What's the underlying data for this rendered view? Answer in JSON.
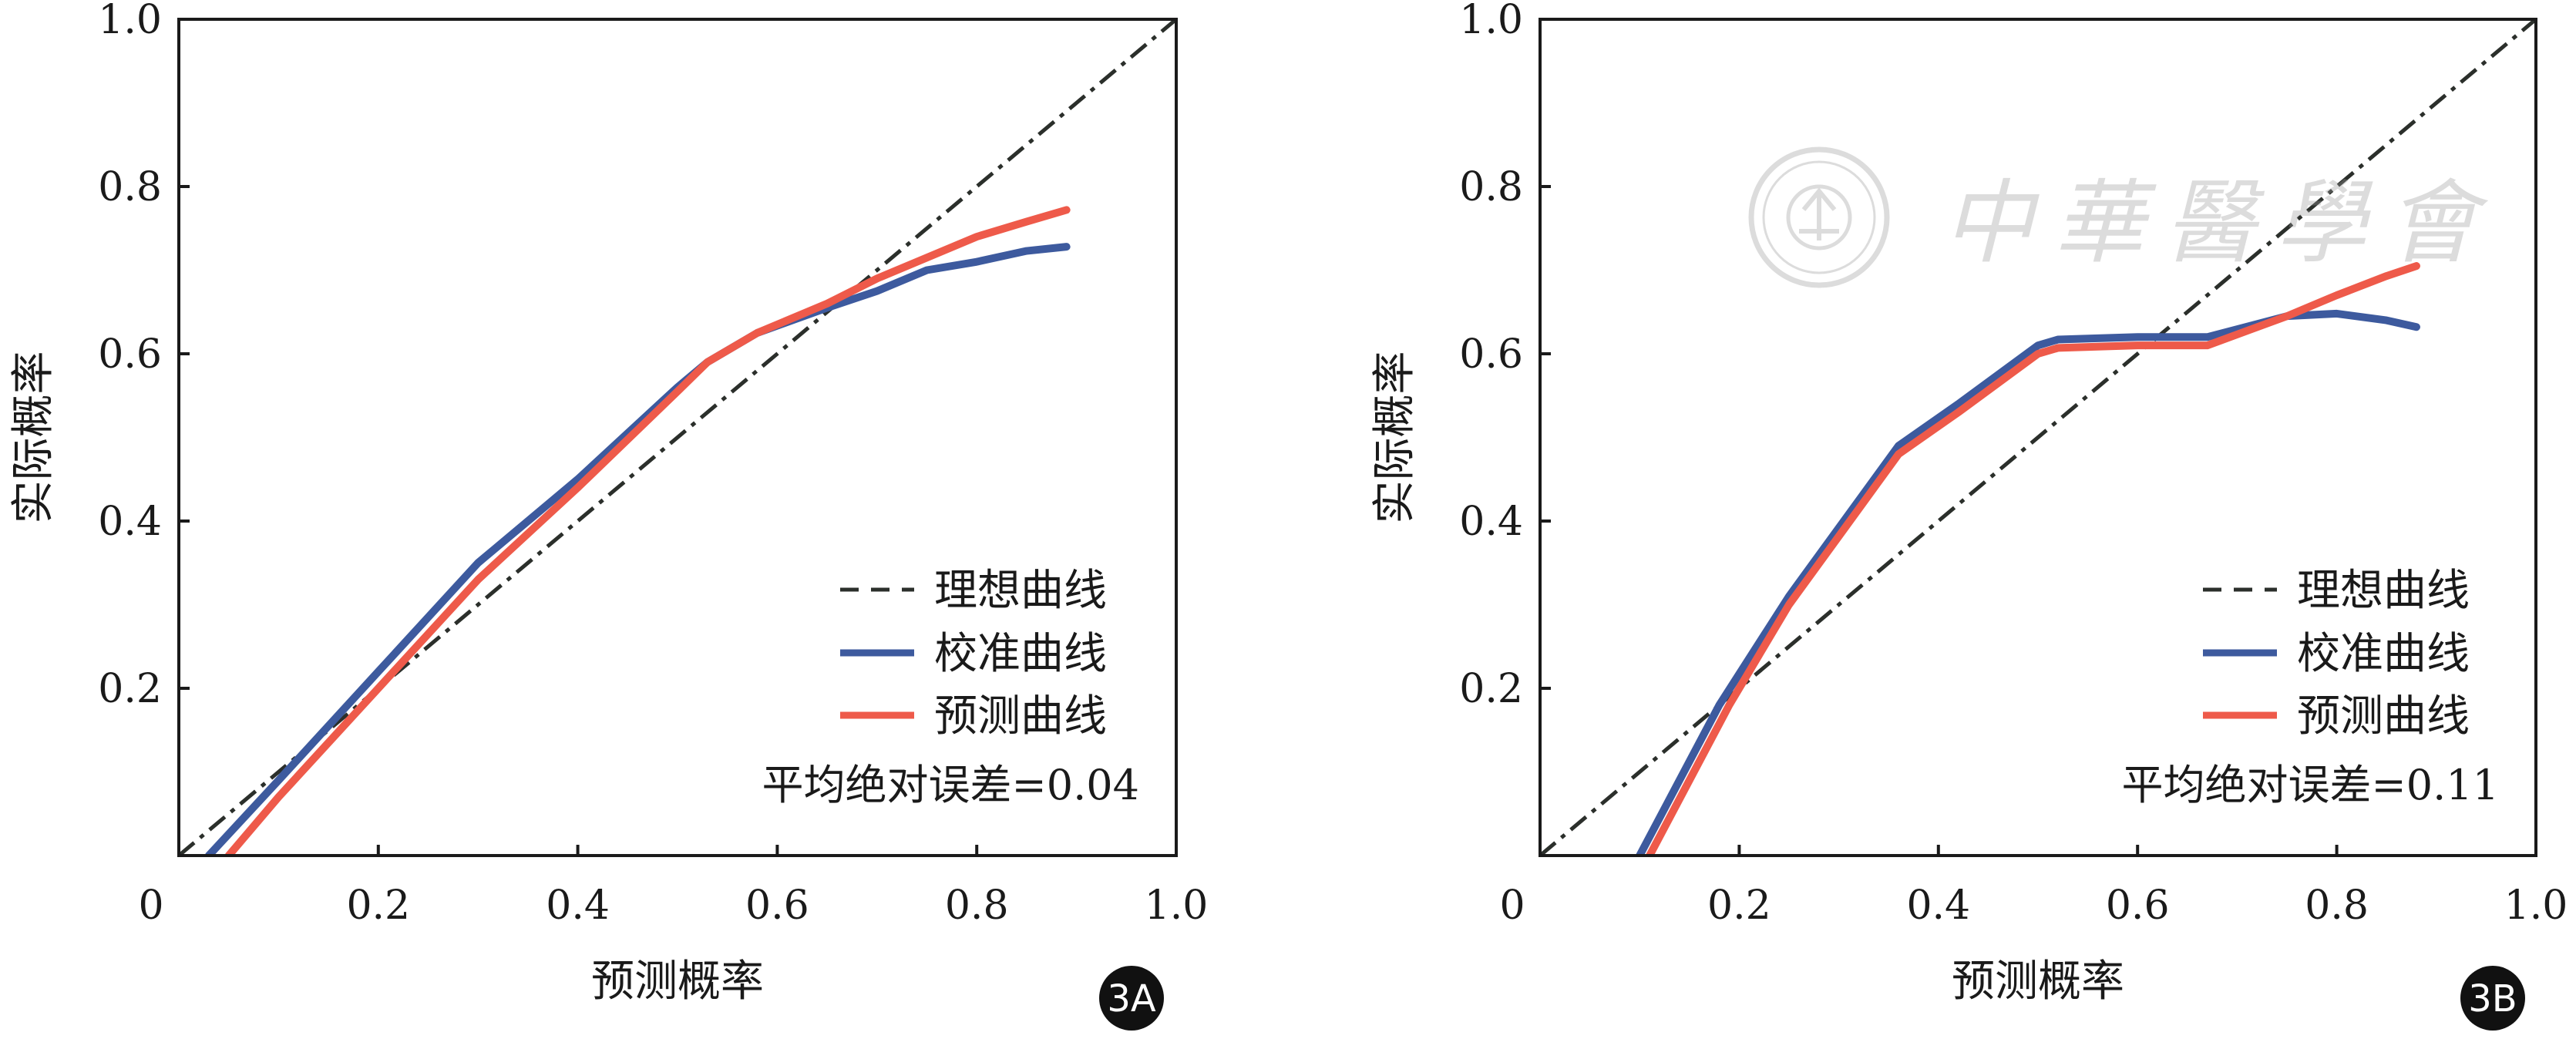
{
  "chart_data": [
    {
      "type": "line",
      "panel_label": "3A",
      "xlabel": "预测概率",
      "ylabel": "实际概率",
      "xlim": [
        0,
        1.0
      ],
      "ylim": [
        0,
        1.0
      ],
      "x_ticks": [
        "0",
        "0.2",
        "0.4",
        "0.6",
        "0.8",
        "1.0"
      ],
      "y_ticks": [
        "0.2",
        "0.4",
        "0.6",
        "0.8",
        "1.0"
      ],
      "grid": false,
      "legend_position": "lower-right",
      "annotation": "平均绝对误差=0.04",
      "series": [
        {
          "name": "理想曲线",
          "style": "dashed",
          "color": "#2b2f2b",
          "x": [
            0.0,
            1.0
          ],
          "y": [
            0.0,
            1.0
          ]
        },
        {
          "name": "校准曲线",
          "style": "solid",
          "color": "#3d5a9e",
          "x": [
            0.03,
            0.1,
            0.2,
            0.3,
            0.4,
            0.5,
            0.53,
            0.58,
            0.65,
            0.7,
            0.75,
            0.8,
            0.85,
            0.89
          ],
          "y": [
            0.0,
            0.09,
            0.22,
            0.35,
            0.45,
            0.56,
            0.59,
            0.625,
            0.655,
            0.675,
            0.7,
            0.71,
            0.723,
            0.728
          ]
        },
        {
          "name": "预测曲线",
          "style": "solid",
          "color": "#ee5a4a",
          "x": [
            0.05,
            0.1,
            0.2,
            0.3,
            0.4,
            0.5,
            0.53,
            0.58,
            0.65,
            0.7,
            0.75,
            0.8,
            0.85,
            0.89
          ],
          "y": [
            0.0,
            0.07,
            0.2,
            0.33,
            0.44,
            0.555,
            0.59,
            0.625,
            0.66,
            0.69,
            0.715,
            0.74,
            0.758,
            0.772
          ]
        }
      ]
    },
    {
      "type": "line",
      "panel_label": "3B",
      "xlabel": "预测概率",
      "ylabel": "实际概率",
      "xlim": [
        0,
        1.0
      ],
      "ylim": [
        0,
        1.0
      ],
      "x_ticks": [
        "0",
        "0.2",
        "0.4",
        "0.6",
        "0.8",
        "1.0"
      ],
      "y_ticks": [
        "0.2",
        "0.4",
        "0.6",
        "0.8",
        "1.0"
      ],
      "grid": false,
      "legend_position": "lower-right",
      "annotation": "平均绝对误差=0.11",
      "series": [
        {
          "name": "理想曲线",
          "style": "dashed",
          "color": "#2b2f2b",
          "x": [
            0.0,
            1.0
          ],
          "y": [
            0.0,
            1.0
          ]
        },
        {
          "name": "校准曲线",
          "style": "solid",
          "color": "#3d5a9e",
          "x": [
            0.1,
            0.18,
            0.25,
            0.36,
            0.42,
            0.5,
            0.52,
            0.6,
            0.67,
            0.75,
            0.8,
            0.85,
            0.88
          ],
          "y": [
            0.0,
            0.18,
            0.31,
            0.49,
            0.54,
            0.61,
            0.617,
            0.62,
            0.62,
            0.645,
            0.648,
            0.64,
            0.632
          ]
        },
        {
          "name": "预测曲线",
          "style": "solid",
          "color": "#ee5a4a",
          "x": [
            0.11,
            0.19,
            0.25,
            0.36,
            0.42,
            0.5,
            0.52,
            0.6,
            0.67,
            0.75,
            0.8,
            0.85,
            0.88
          ],
          "y": [
            0.0,
            0.18,
            0.3,
            0.48,
            0.53,
            0.6,
            0.607,
            0.61,
            0.61,
            0.645,
            0.67,
            0.693,
            0.705
          ]
        }
      ]
    }
  ],
  "watermark": {
    "text": "中華醫學會",
    "seal": "中华医学会"
  }
}
